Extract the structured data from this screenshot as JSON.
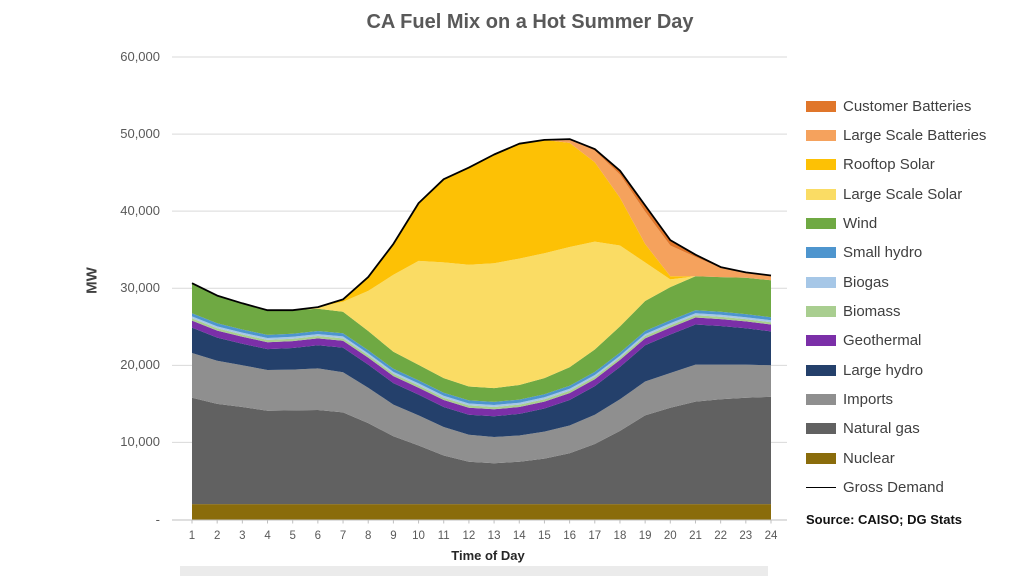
{
  "chart_data": {
    "type": "area",
    "variant": "stacked-area",
    "title": "CA Fuel Mix on a Hot Summer Day",
    "xlabel": "Time of Day",
    "ylabel": "MW",
    "source": "Source: CAISO; DG Stats",
    "legend_position": "right",
    "grid": true,
    "ylim": [
      0,
      60000
    ],
    "y_ticks": [
      {
        "label": "60,000",
        "value": 60000
      },
      {
        "label": "50,000",
        "value": 50000
      },
      {
        "label": "40,000",
        "value": 40000
      },
      {
        "label": "30,000",
        "value": 30000
      },
      {
        "label": "20,000",
        "value": 20000
      },
      {
        "label": "10,000",
        "value": 10000
      },
      {
        "label": "-",
        "value": 0
      }
    ],
    "x": [
      1,
      2,
      3,
      4,
      5,
      6,
      7,
      8,
      9,
      10,
      11,
      12,
      13,
      14,
      15,
      16,
      17,
      18,
      19,
      20,
      21,
      22,
      23,
      24
    ],
    "series": [
      {
        "name": "Customer Batteries",
        "type": "area",
        "color": "#E0762A",
        "values": [
          0,
          0,
          0,
          0,
          0,
          0,
          0,
          0,
          0,
          0,
          0,
          0,
          0,
          0,
          0,
          0,
          200,
          500,
          800,
          700,
          300,
          100,
          0,
          0
        ]
      },
      {
        "name": "Large Scale Batteries",
        "type": "area",
        "color": "#F5A25D",
        "values": [
          0,
          0,
          0,
          0,
          0,
          0,
          0,
          0,
          0,
          0,
          0,
          0,
          0,
          0,
          0,
          500,
          1500,
          3000,
          4200,
          4000,
          2500,
          1200,
          700,
          600
        ]
      },
      {
        "name": "Rooftop Solar",
        "type": "area",
        "color": "#FDC105",
        "values": [
          0,
          0,
          0,
          0,
          0,
          0,
          300,
          1800,
          4000,
          7500,
          10800,
          12600,
          14100,
          14900,
          14700,
          13500,
          10300,
          6200,
          2400,
          400,
          0,
          0,
          0,
          0
        ]
      },
      {
        "name": "Large Scale Solar",
        "type": "area",
        "color": "#FADC64",
        "values": [
          0,
          0,
          0,
          0,
          0,
          200,
          1300,
          5200,
          10000,
          13500,
          15000,
          15800,
          16200,
          16400,
          16200,
          15600,
          14000,
          10500,
          5000,
          1000,
          0,
          0,
          0,
          0
        ]
      },
      {
        "name": "Wind",
        "type": "area",
        "color": "#6FA943",
        "values": [
          3900,
          3600,
          3400,
          3200,
          3050,
          2900,
          2800,
          2500,
          2200,
          2000,
          1900,
          1800,
          1800,
          1900,
          2100,
          2400,
          2900,
          3400,
          3900,
          4300,
          4400,
          4500,
          4700,
          4800
        ]
      },
      {
        "name": "Small hydro",
        "type": "area",
        "color": "#4E95CE",
        "values": [
          400,
          400,
          400,
          400,
          400,
          400,
          400,
          400,
          400,
          400,
          400,
          400,
          400,
          400,
          400,
          400,
          400,
          400,
          400,
          400,
          400,
          400,
          400,
          400
        ]
      },
      {
        "name": "Biogas",
        "type": "area",
        "color": "#A6C7E7",
        "values": [
          250,
          250,
          250,
          250,
          250,
          250,
          250,
          250,
          250,
          250,
          250,
          250,
          250,
          250,
          250,
          250,
          250,
          250,
          250,
          250,
          250,
          250,
          250,
          250
        ]
      },
      {
        "name": "Biomass",
        "type": "area",
        "color": "#A9CE90",
        "values": [
          300,
          300,
          300,
          300,
          300,
          300,
          300,
          300,
          300,
          300,
          300,
          300,
          300,
          300,
          300,
          300,
          300,
          300,
          300,
          300,
          300,
          300,
          300,
          300
        ]
      },
      {
        "name": "Geothermal",
        "type": "area",
        "color": "#7B2FA8",
        "values": [
          900,
          900,
          900,
          900,
          900,
          900,
          900,
          900,
          900,
          900,
          900,
          900,
          900,
          900,
          900,
          900,
          900,
          900,
          900,
          900,
          900,
          900,
          900,
          900
        ]
      },
      {
        "name": "Large hydro",
        "type": "area",
        "color": "#24406B",
        "values": [
          3300,
          3000,
          2800,
          2700,
          2800,
          3000,
          3200,
          3000,
          2800,
          2700,
          2600,
          2600,
          2700,
          2800,
          3000,
          3300,
          3700,
          4200,
          4700,
          5000,
          5200,
          5000,
          4700,
          4400
        ]
      },
      {
        "name": "Imports",
        "type": "area",
        "color": "#8F8F8F",
        "values": [
          5800,
          5600,
          5400,
          5300,
          5300,
          5400,
          5200,
          4600,
          4100,
          3900,
          3700,
          3500,
          3400,
          3400,
          3500,
          3600,
          3800,
          4100,
          4400,
          4500,
          4800,
          4500,
          4300,
          4100
        ]
      },
      {
        "name": "Natural gas",
        "type": "area",
        "color": "#616161",
        "values": [
          13800,
          13000,
          12600,
          12100,
          12150,
          12200,
          11900,
          10500,
          8800,
          7600,
          6300,
          5500,
          5300,
          5500,
          5900,
          6600,
          7800,
          9500,
          11500,
          12500,
          13300,
          13600,
          13800,
          13900
        ]
      },
      {
        "name": "Nuclear",
        "type": "area",
        "color": "#8A6C0B",
        "values": [
          2000,
          2000,
          2000,
          2000,
          2000,
          2000,
          2000,
          2000,
          2000,
          2000,
          2000,
          2000,
          2000,
          2000,
          2000,
          2000,
          2000,
          2000,
          2000,
          2000,
          2000,
          2000,
          2000,
          2000
        ]
      },
      {
        "name": "Gross Demand",
        "type": "line",
        "color": "#000000",
        "values": [
          30650,
          29050,
          28050,
          27150,
          27150,
          27550,
          28550,
          31450,
          35750,
          41050,
          44150,
          45650,
          47350,
          48750,
          49250,
          49350,
          48050,
          45250,
          40750,
          36250,
          34350,
          32750,
          32050,
          31650
        ]
      }
    ]
  }
}
